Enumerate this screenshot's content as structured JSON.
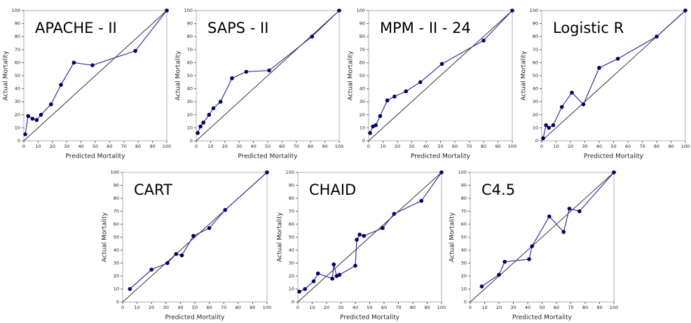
{
  "chart_data": [
    {
      "type": "line",
      "title": "APACHE - II",
      "x_label": "Predicted Mortality",
      "y_label": "Actual Mortality",
      "x": [
        1,
        3,
        6,
        9,
        12,
        19,
        26,
        35,
        48,
        78,
        100
      ],
      "series": [
        {
          "color": "#333399",
          "values": [
            5,
            19,
            17,
            16,
            20,
            28,
            43,
            60,
            58,
            69,
            100
          ]
        }
      ],
      "xlim": [
        0,
        100
      ],
      "ylim": [
        0,
        100
      ],
      "xticks": [
        0,
        10,
        20,
        30,
        40,
        50,
        60,
        70,
        80,
        90,
        100
      ],
      "yticks": [
        0,
        10,
        20,
        30,
        40,
        50,
        60,
        70,
        80,
        90,
        100
      ]
    },
    {
      "type": "line",
      "title": "SAPS - II",
      "x_label": "Predicted Mortality",
      "y_label": "Actual Mortality",
      "x": [
        1,
        3,
        5,
        9,
        12,
        17,
        25,
        35,
        51,
        81,
        100
      ],
      "series": [
        {
          "color": "#333399",
          "values": [
            6,
            11,
            14,
            20,
            25,
            30,
            48,
            53,
            54,
            80,
            100
          ]
        }
      ],
      "xlim": [
        0,
        100
      ],
      "ylim": [
        0,
        100
      ],
      "xticks": [
        0,
        10,
        20,
        30,
        40,
        50,
        60,
        70,
        80,
        90,
        100
      ],
      "yticks": [
        0,
        10,
        20,
        30,
        40,
        50,
        60,
        70,
        80,
        90,
        100
      ]
    },
    {
      "type": "line",
      "title": "MPM - II - 24",
      "x_label": "Predicted Mortality",
      "y_label": "Actual Mortality",
      "x": [
        1,
        3,
        5,
        8,
        13,
        18,
        26,
        36,
        51,
        80,
        100
      ],
      "series": [
        {
          "color": "#333399",
          "values": [
            6,
            11,
            12,
            19,
            31,
            34,
            38,
            45,
            59,
            77,
            100
          ]
        }
      ],
      "xlim": [
        0,
        100
      ],
      "ylim": [
        0,
        100
      ],
      "xticks": [
        0,
        10,
        20,
        30,
        40,
        50,
        60,
        70,
        80,
        90,
        100
      ],
      "yticks": [
        0,
        10,
        20,
        30,
        40,
        50,
        60,
        70,
        80,
        90,
        100
      ]
    },
    {
      "type": "line",
      "title": "Logistic R",
      "x_label": "Predicted Mortality",
      "y_label": "Actual Mortality",
      "x": [
        1,
        3,
        5,
        8,
        14,
        21,
        29,
        40,
        53,
        80,
        100
      ],
      "series": [
        {
          "color": "#333399",
          "values": [
            2,
            12,
            10,
            12,
            26,
            37,
            28,
            56,
            63,
            80,
            100
          ]
        }
      ],
      "xlim": [
        0,
        100
      ],
      "ylim": [
        0,
        100
      ],
      "xticks": [
        0,
        10,
        20,
        30,
        40,
        50,
        60,
        70,
        80,
        90,
        100
      ],
      "yticks": [
        0,
        10,
        20,
        30,
        40,
        50,
        60,
        70,
        80,
        90,
        100
      ]
    },
    {
      "type": "line",
      "title": "CART",
      "x_label": "Predicted Mortality",
      "y_label": "Actual Mortality",
      "x": [
        5,
        20,
        31,
        37,
        41,
        49,
        60,
        71,
        100
      ],
      "series": [
        {
          "color": "#333399",
          "values": [
            10,
            25,
            30,
            37,
            36,
            51,
            57,
            71,
            100
          ]
        }
      ],
      "xlim": [
        0,
        100
      ],
      "ylim": [
        0,
        100
      ],
      "xticks": [
        0,
        10,
        20,
        30,
        40,
        50,
        60,
        70,
        80,
        90,
        100
      ],
      "yticks": [
        0,
        10,
        20,
        30,
        40,
        50,
        60,
        70,
        80,
        90,
        100
      ]
    },
    {
      "type": "line",
      "title": "CHAID",
      "x_label": "Predicted Mortality",
      "y_label": "Actual Mortality",
      "x": [
        1,
        5,
        11,
        14,
        24,
        25,
        27,
        29,
        40,
        41,
        43,
        46,
        59,
        67,
        86,
        100
      ],
      "series": [
        {
          "color": "#333399",
          "values": [
            8,
            10,
            16,
            22,
            18,
            29,
            20,
            21,
            28,
            48,
            52,
            51,
            57,
            68,
            78,
            100
          ]
        }
      ],
      "xlim": [
        0,
        100
      ],
      "ylim": [
        0,
        100
      ],
      "xticks": [
        0,
        10,
        20,
        30,
        40,
        50,
        60,
        70,
        80,
        90,
        100
      ],
      "yticks": [
        0,
        10,
        20,
        30,
        40,
        50,
        60,
        70,
        80,
        90,
        100
      ]
    },
    {
      "type": "line",
      "title": "C4.5",
      "x_label": "Predicted Mortality",
      "y_label": "Actual Mortality",
      "x": [
        8,
        20,
        24,
        41,
        43,
        55,
        65,
        69,
        76,
        100
      ],
      "series": [
        {
          "color": "#333399",
          "values": [
            12,
            21,
            31,
            33,
            43,
            66,
            54,
            72,
            70,
            100
          ]
        }
      ],
      "xlim": [
        0,
        100
      ],
      "ylim": [
        0,
        100
      ],
      "xticks": [
        0,
        10,
        20,
        30,
        40,
        50,
        60,
        70,
        80,
        90,
        100
      ],
      "yticks": [
        0,
        10,
        20,
        30,
        40,
        50,
        60,
        70,
        80,
        90,
        100
      ]
    }
  ]
}
